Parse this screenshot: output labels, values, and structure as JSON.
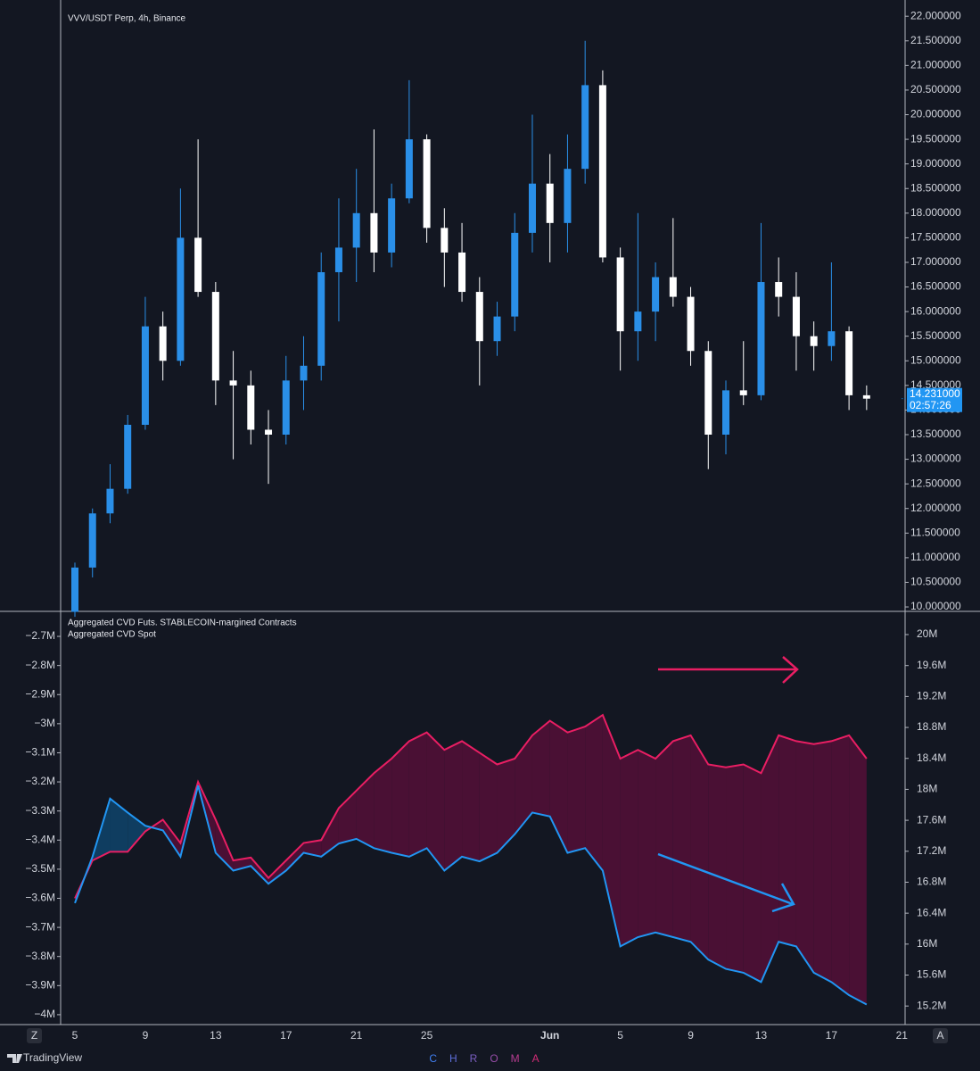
{
  "chart_data": [
    {
      "type": "candlestick",
      "title": "VVV/USDT Perp, 4h, Binance",
      "open": [
        9.9,
        10.8,
        11.9,
        12.4,
        13.7,
        15.7,
        15.0,
        17.5,
        16.4,
        14.6,
        14.5,
        13.6,
        13.5,
        14.6,
        14.9,
        16.8,
        17.3,
        18.0,
        17.2,
        18.3,
        19.5,
        17.7,
        17.2,
        16.4,
        15.4,
        15.9,
        17.6,
        18.6,
        17.8,
        18.9,
        20.6,
        17.1,
        15.6,
        16.0,
        16.7,
        16.3,
        15.2,
        13.5,
        14.4,
        14.3,
        16.6,
        16.3,
        15.5,
        15.3,
        15.6,
        14.3,
        null,
        null
      ],
      "high": [
        10.9,
        12.0,
        12.9,
        13.9,
        16.3,
        16.0,
        18.5,
        19.5,
        16.6,
        15.2,
        14.8,
        14.0,
        15.1,
        15.5,
        17.2,
        18.3,
        18.9,
        19.7,
        18.6,
        20.7,
        19.6,
        18.1,
        17.8,
        16.7,
        16.2,
        18.0,
        20.0,
        19.2,
        19.6,
        21.5,
        20.9,
        17.3,
        18.0,
        17.0,
        17.9,
        16.5,
        15.4,
        14.6,
        15.4,
        17.8,
        17.1,
        16.8,
        15.8,
        17.0,
        15.7,
        14.5,
        null,
        null
      ],
      "low": [
        9.8,
        10.6,
        11.7,
        12.3,
        13.6,
        14.6,
        14.9,
        16.3,
        14.1,
        13.0,
        13.3,
        12.5,
        13.3,
        14.0,
        14.6,
        15.8,
        16.6,
        16.8,
        16.9,
        18.2,
        17.4,
        16.5,
        16.2,
        14.5,
        15.1,
        15.6,
        17.2,
        17.0,
        17.2,
        18.6,
        17.0,
        14.8,
        15.0,
        15.4,
        16.1,
        14.9,
        12.8,
        13.1,
        14.1,
        14.2,
        15.9,
        14.8,
        14.8,
        15.0,
        14.0,
        14.0,
        null,
        null
      ],
      "close": [
        10.8,
        11.9,
        12.4,
        13.7,
        15.7,
        15.0,
        17.5,
        16.4,
        14.6,
        14.5,
        13.6,
        13.5,
        14.6,
        14.9,
        16.8,
        17.3,
        18.0,
        17.2,
        18.3,
        19.5,
        17.7,
        17.2,
        16.4,
        15.4,
        15.9,
        17.6,
        18.6,
        17.8,
        18.9,
        20.6,
        17.1,
        15.6,
        16.0,
        16.7,
        16.3,
        15.2,
        13.5,
        14.4,
        14.3,
        16.6,
        16.3,
        15.5,
        15.3,
        15.6,
        14.3,
        14.231,
        null,
        null
      ],
      "up_color": "#2a8fe8",
      "down_color": "#ffffff",
      "ylim": [
        9.91,
        22.33
      ],
      "yticks": [
        {
          "value": 10,
          "label": "10.000000"
        },
        {
          "value": 10.5,
          "label": "10.500000"
        },
        {
          "value": 11,
          "label": "11.000000"
        },
        {
          "value": 11.5,
          "label": "11.500000"
        },
        {
          "value": 12,
          "label": "12.000000"
        },
        {
          "value": 12.5,
          "label": "12.500000"
        },
        {
          "value": 13,
          "label": "13.000000"
        },
        {
          "value": 13.5,
          "label": "13.500000"
        },
        {
          "value": 14,
          "label": "14.000000"
        },
        {
          "value": 14.5,
          "label": "14.500000"
        },
        {
          "value": 15,
          "label": "15.000000"
        },
        {
          "value": 15.5,
          "label": "15.500000"
        },
        {
          "value": 16,
          "label": "16.000000"
        },
        {
          "value": 16.5,
          "label": "16.500000"
        },
        {
          "value": 17,
          "label": "17.000000"
        },
        {
          "value": 17.5,
          "label": "17.500000"
        },
        {
          "value": 18,
          "label": "18.000000"
        },
        {
          "value": 18.5,
          "label": "18.500000"
        },
        {
          "value": 19,
          "label": "19.000000"
        },
        {
          "value": 19.5,
          "label": "19.500000"
        },
        {
          "value": 20,
          "label": "20.000000"
        },
        {
          "value": 20.5,
          "label": "20.500000"
        },
        {
          "value": 21,
          "label": "21.000000"
        },
        {
          "value": 21.5,
          "label": "21.500000"
        },
        {
          "value": 22,
          "label": "22.000000"
        }
      ],
      "last_price": {
        "value": 14.231,
        "label": "14.231000"
      },
      "countdown": "02:57:26",
      "last_price_color": "#2196f3"
    },
    {
      "type": "line",
      "categories": [
        "5",
        null,
        null,
        null,
        "9",
        null,
        null,
        null,
        "13",
        null,
        null,
        null,
        "17",
        null,
        null,
        null,
        "21",
        null,
        null,
        null,
        "25",
        null,
        null,
        null,
        null,
        null,
        null,
        "Jun",
        null,
        null,
        null,
        "5",
        null,
        null,
        null,
        "9",
        null,
        null,
        null,
        "13",
        null,
        null,
        null,
        "17",
        null,
        null,
        null,
        "21"
      ],
      "series": [
        {
          "name": "Aggregated CVD Futs. STABLECOIN-margined Contracts",
          "color": "#e91e63",
          "values": [
            -3.6,
            -3.47,
            -3.44,
            -3.44,
            -3.37,
            -3.33,
            -3.41,
            -3.2,
            -3.33,
            -3.47,
            -3.46,
            -3.53,
            -3.47,
            -3.41,
            -3.4,
            -3.29,
            -3.23,
            -3.17,
            -3.12,
            -3.06,
            -3.03,
            -3.09,
            -3.06,
            -3.1,
            -3.14,
            -3.12,
            -3.04,
            -2.99,
            -3.03,
            -3.01,
            -2.97,
            -3.12,
            -3.09,
            -3.12,
            -3.06,
            -3.04,
            -3.14,
            -3.15,
            -3.14,
            -3.17,
            -3.04,
            -3.06,
            -3.07,
            -3.06,
            -3.04,
            -3.12,
            null,
            null
          ]
        },
        {
          "name": "Aggregated CVD Spot",
          "color": "#2196f3",
          "axis": "y2",
          "values": [
            16.53,
            17.13,
            17.88,
            17.7,
            17.53,
            17.47,
            17.13,
            18.05,
            17.18,
            16.95,
            17.01,
            16.78,
            16.95,
            17.18,
            17.13,
            17.3,
            17.36,
            17.24,
            17.18,
            17.13,
            17.24,
            16.95,
            17.13,
            17.07,
            17.18,
            17.42,
            17.7,
            17.65,
            17.18,
            17.24,
            16.95,
            15.97,
            16.09,
            16.15,
            16.09,
            16.03,
            15.8,
            15.68,
            15.63,
            15.51,
            16.03,
            15.97,
            15.63,
            15.51,
            15.34,
            15.22,
            null,
            null
          ]
        }
      ],
      "fill_above_color": "#4a1034",
      "fill_below_color": "#0f3d60",
      "ylim": [
        -4.034,
        -2.614
      ],
      "yticks": [
        {
          "value": -2.7,
          "label": "−2.7M"
        },
        {
          "value": -2.8,
          "label": "−2.8M"
        },
        {
          "value": -2.9,
          "label": "−2.9M"
        },
        {
          "value": -3,
          "label": "−3M"
        },
        {
          "value": -3.1,
          "label": "−3.1M"
        },
        {
          "value": -3.2,
          "label": "−3.2M"
        },
        {
          "value": -3.3,
          "label": "−3.3M"
        },
        {
          "value": -3.4,
          "label": "−3.4M"
        },
        {
          "value": -3.5,
          "label": "−3.5M"
        },
        {
          "value": -3.6,
          "label": "−3.6M"
        },
        {
          "value": -3.7,
          "label": "−3.7M"
        },
        {
          "value": -3.8,
          "label": "−3.8M"
        },
        {
          "value": -3.9,
          "label": "−3.9M"
        },
        {
          "value": -4,
          "label": "−4M"
        }
      ],
      "y2lim": [
        14.96,
        20.3
      ],
      "y2ticks": [
        {
          "value": 20,
          "label": "20M"
        },
        {
          "value": 19.6,
          "label": "19.6M"
        },
        {
          "value": 19.2,
          "label": "19.2M"
        },
        {
          "value": 18.8,
          "label": "18.8M"
        },
        {
          "value": 18.4,
          "label": "18.4M"
        },
        {
          "value": 18,
          "label": "18M"
        },
        {
          "value": 17.6,
          "label": "17.6M"
        },
        {
          "value": 17.2,
          "label": "17.2M"
        },
        {
          "value": 16.8,
          "label": "16.8M"
        },
        {
          "value": 16.4,
          "label": "16.4M"
        },
        {
          "value": 16,
          "label": "16M"
        },
        {
          "value": 15.6,
          "label": "15.6M"
        },
        {
          "value": 15.2,
          "label": "15.2M"
        }
      ]
    }
  ],
  "ui": {
    "left_button": "Z",
    "right_button": "A",
    "brand": "TradingView",
    "watermark": "CHROMA"
  }
}
